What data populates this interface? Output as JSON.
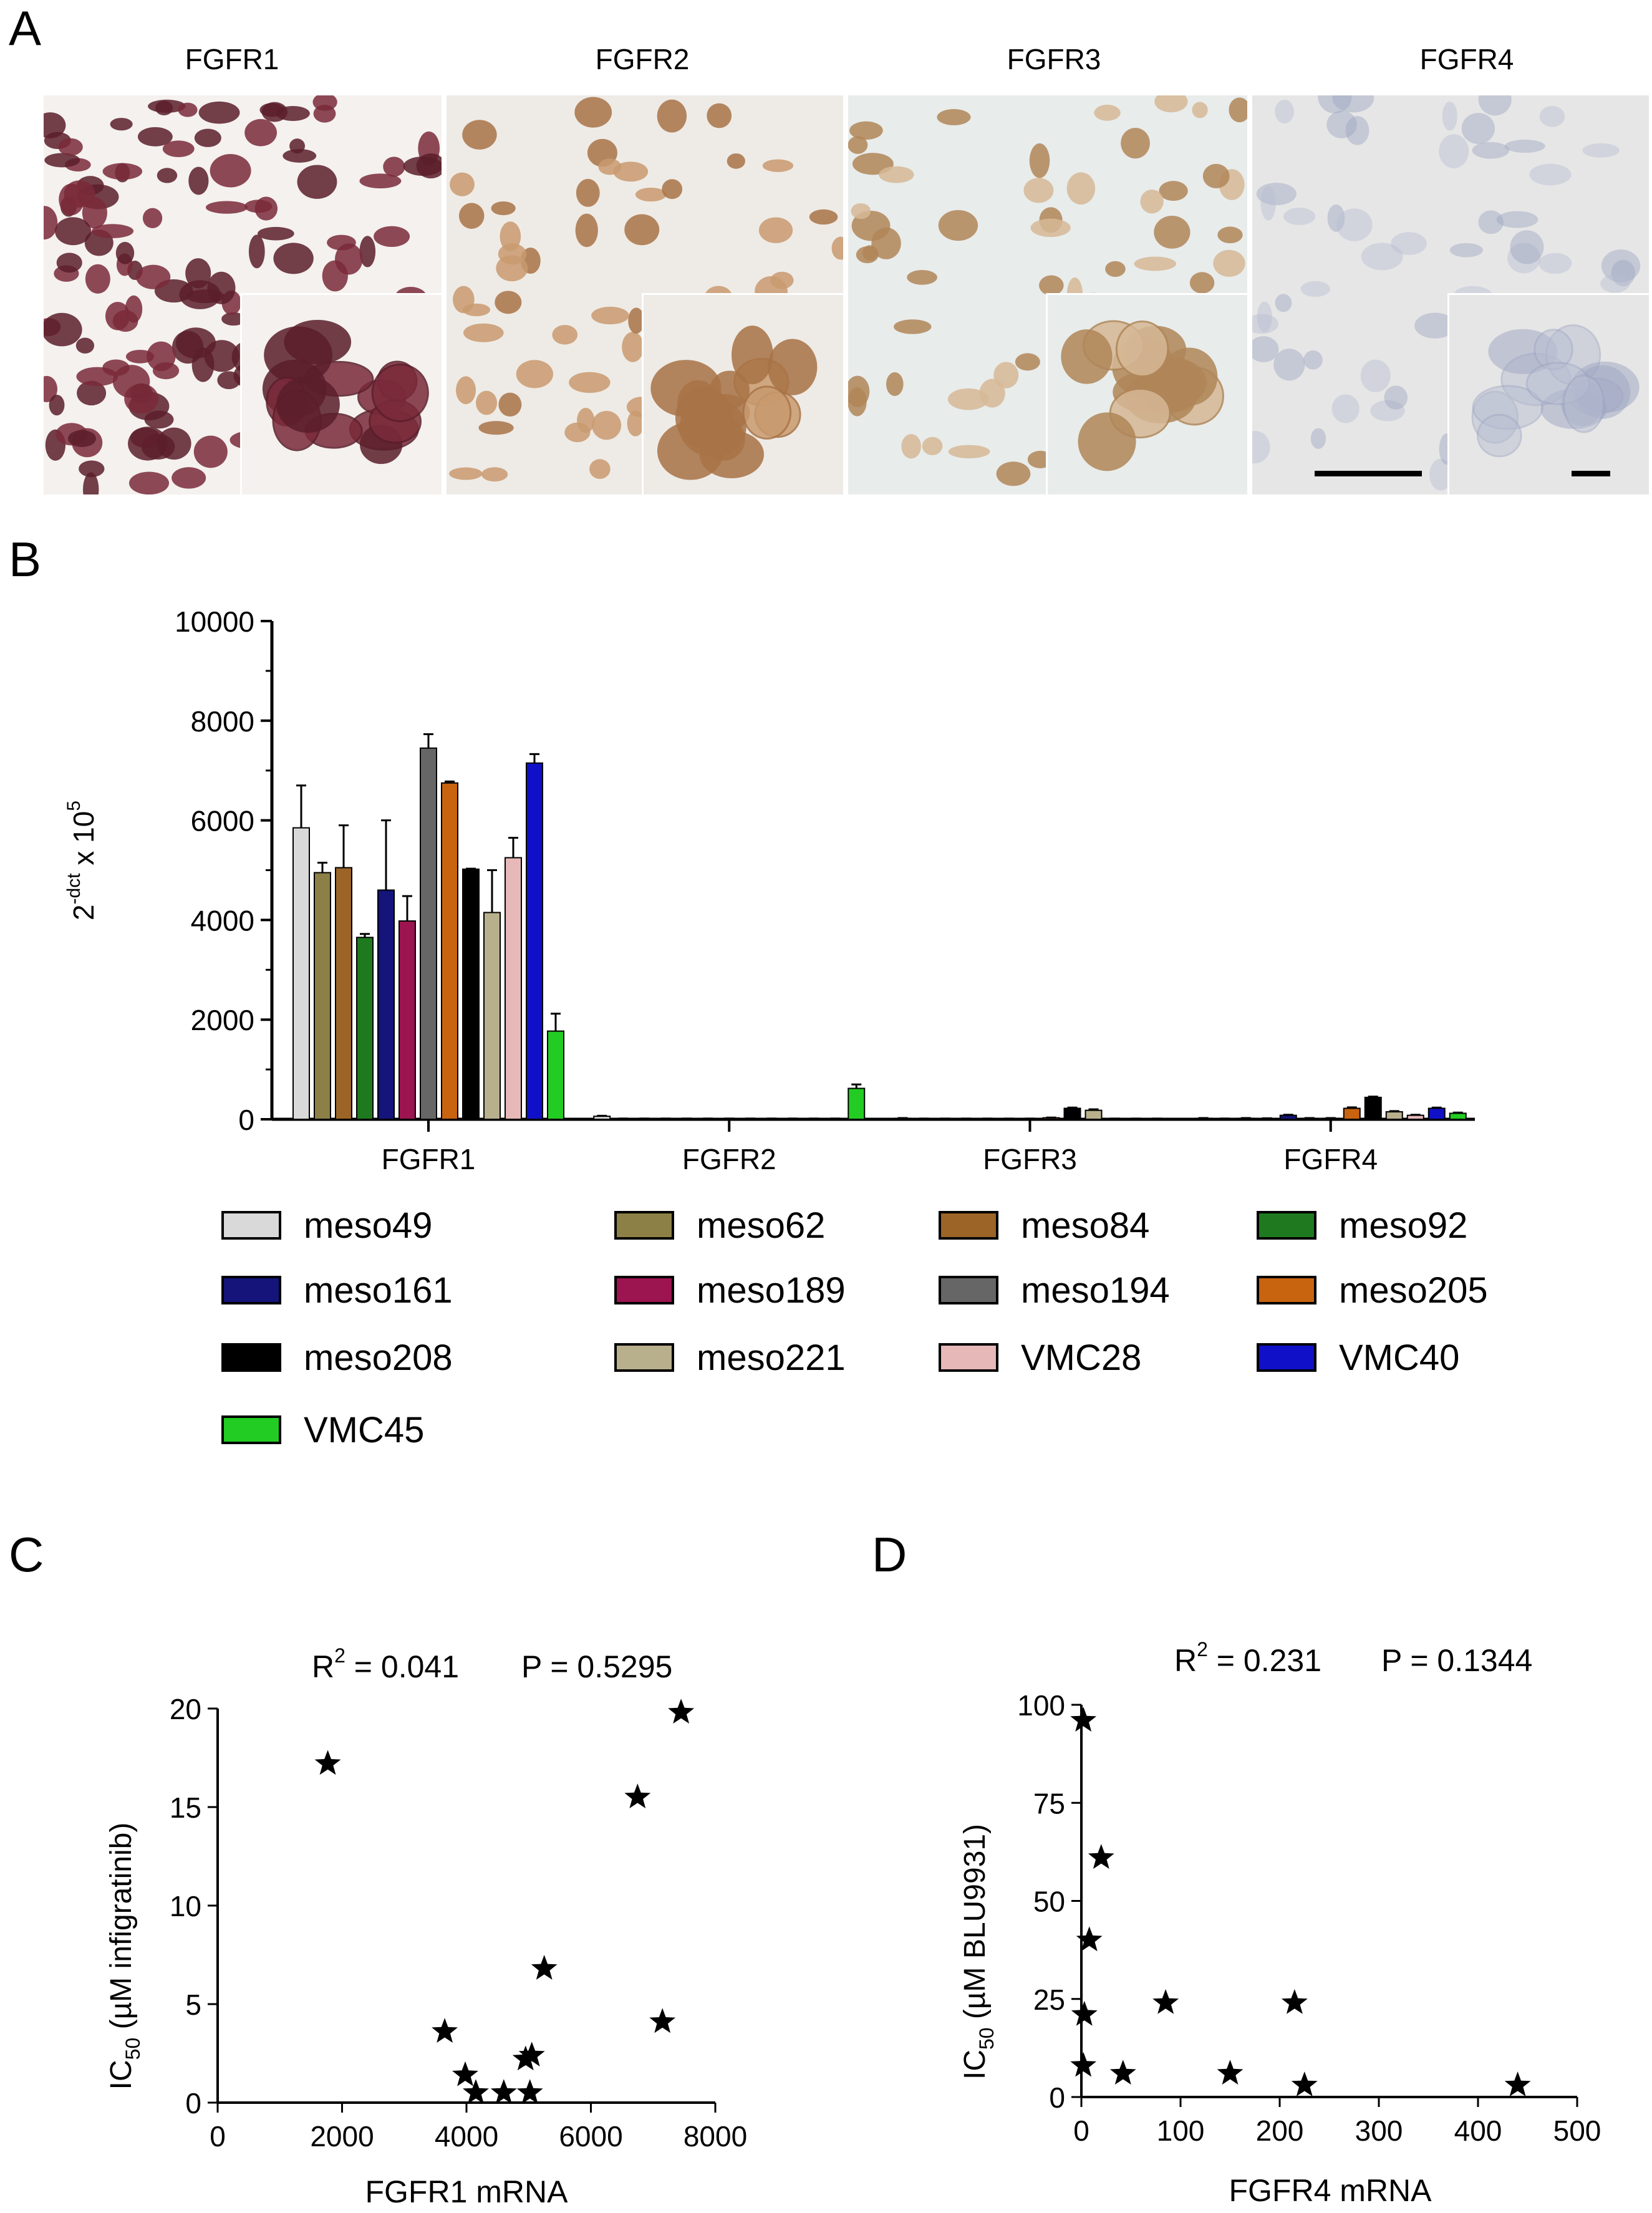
{
  "panels": {
    "a": "A",
    "b": "B",
    "c": "C",
    "d": "D"
  },
  "micrographs": [
    {
      "title": "FGFR1",
      "bg": "#f4f1ee",
      "cell": "#7a2a3a",
      "cell_alt": "#5a1e2a"
    },
    {
      "title": "FGFR2",
      "bg": "#eeebe6",
      "cell": "#c99a6e",
      "cell_alt": "#a87346"
    },
    {
      "title": "FGFR3",
      "bg": "#e8eceb",
      "cell": "#d6b896",
      "cell_alt": "#b08658"
    },
    {
      "title": "FGFR4",
      "bg": "#e6e6e6",
      "cell": "#b9bfd2",
      "cell_alt": "#9ea6c2"
    }
  ],
  "chart_data": [
    {
      "type": "bar",
      "ylabel": "2",
      "ylabel_sup": "-dct",
      "ylabel_mid": " x 10",
      "ylabel_sup2": "5",
      "xlabel": "",
      "ylim": [
        0,
        10000
      ],
      "yticks": [
        0,
        2000,
        4000,
        6000,
        8000,
        10000
      ],
      "categories": [
        "FGFR1",
        "FGFR2",
        "FGFR3",
        "FGFR4"
      ],
      "series": [
        {
          "name": "meso49",
          "color": "#d9d9d9",
          "values": [
            5850,
            60,
            20,
            20
          ],
          "errors": [
            850,
            10,
            5,
            5
          ]
        },
        {
          "name": "meso62",
          "color": "#8c8046",
          "values": [
            4950,
            10,
            10,
            10
          ],
          "errors": [
            200,
            5,
            5,
            5
          ]
        },
        {
          "name": "meso84",
          "color": "#9c6427",
          "values": [
            5050,
            10,
            10,
            20
          ],
          "errors": [
            850,
            5,
            5,
            5
          ]
        },
        {
          "name": "meso92",
          "color": "#1f7a1f",
          "values": [
            3650,
            10,
            10,
            15
          ],
          "errors": [
            70,
            5,
            5,
            5
          ]
        },
        {
          "name": "meso161",
          "color": "#14147a",
          "values": [
            4600,
            10,
            10,
            80
          ],
          "errors": [
            1400,
            5,
            5,
            10
          ]
        },
        {
          "name": "meso189",
          "color": "#9c1450",
          "values": [
            3980,
            10,
            10,
            20
          ],
          "errors": [
            500,
            5,
            5,
            5
          ]
        },
        {
          "name": "meso194",
          "color": "#666666",
          "values": [
            7450,
            10,
            10,
            20
          ],
          "errors": [
            280,
            5,
            5,
            5
          ]
        },
        {
          "name": "meso205",
          "color": "#c8630f",
          "values": [
            6750,
            10,
            30,
            220
          ],
          "errors": [
            30,
            5,
            5,
            20
          ]
        },
        {
          "name": "meso208",
          "color": "#000000",
          "values": [
            5020,
            10,
            220,
            440
          ],
          "errors": [
            10,
            5,
            15,
            15
          ]
        },
        {
          "name": "meso221",
          "color": "#b8b08c",
          "values": [
            4150,
            10,
            180,
            150
          ],
          "errors": [
            850,
            5,
            20,
            15
          ]
        },
        {
          "name": "VMC28",
          "color": "#e6b8b8",
          "values": [
            5250,
            10,
            10,
            80
          ],
          "errors": [
            400,
            5,
            5,
            10
          ]
        },
        {
          "name": "VMC40",
          "color": "#1010c8",
          "values": [
            7150,
            10,
            10,
            220
          ],
          "errors": [
            180,
            5,
            5,
            15
          ]
        },
        {
          "name": "VMC45",
          "color": "#22cc22",
          "values": [
            1770,
            620,
            10,
            120
          ],
          "errors": [
            350,
            80,
            5,
            15
          ]
        }
      ]
    },
    {
      "type": "scatter",
      "annotation_r": "R",
      "annotation_r_sup": "2",
      "annotation_r_val": " = 0.041",
      "annotation_p": "P = 0.5295",
      "xlabel": "FGFR1 mRNA",
      "ylabel_main": "IC",
      "ylabel_sub": "50",
      "ylabel_rest": " (µM infigratinib)",
      "xlim": [
        0,
        8000
      ],
      "ylim": [
        0,
        20
      ],
      "xticks": [
        0,
        2000,
        4000,
        6000,
        8000
      ],
      "yticks": [
        0,
        5,
        10,
        15,
        20
      ],
      "points": [
        {
          "x": 1770,
          "y": 17.2
        },
        {
          "x": 3650,
          "y": 3.6
        },
        {
          "x": 3980,
          "y": 1.4
        },
        {
          "x": 4150,
          "y": 0.5
        },
        {
          "x": 4600,
          "y": 0.5
        },
        {
          "x": 4950,
          "y": 2.2
        },
        {
          "x": 5050,
          "y": 2.4
        },
        {
          "x": 5020,
          "y": 0.5
        },
        {
          "x": 5250,
          "y": 6.8
        },
        {
          "x": 6750,
          "y": 15.5
        },
        {
          "x": 7150,
          "y": 4.1
        },
        {
          "x": 7450,
          "y": 19.8
        }
      ]
    },
    {
      "type": "scatter",
      "annotation_r": "R",
      "annotation_r_sup": "2",
      "annotation_r_val": " = 0.231",
      "annotation_p": "P = 0.1344",
      "xlabel": "FGFR4 mRNA",
      "ylabel_main": "IC",
      "ylabel_sub": "50",
      "ylabel_rest": " (µM BLU9931)",
      "xlim": [
        0,
        500
      ],
      "ylim": [
        0,
        100
      ],
      "xticks": [
        0,
        100,
        200,
        300,
        400,
        500
      ],
      "yticks": [
        0,
        25,
        50,
        75,
        100
      ],
      "points": [
        {
          "x": 2,
          "y": 96
        },
        {
          "x": 20,
          "y": 61
        },
        {
          "x": 8,
          "y": 40
        },
        {
          "x": 3,
          "y": 21
        },
        {
          "x": 2,
          "y": 8
        },
        {
          "x": 42,
          "y": 6
        },
        {
          "x": 85,
          "y": 24
        },
        {
          "x": 150,
          "y": 6
        },
        {
          "x": 215,
          "y": 24
        },
        {
          "x": 225,
          "y": 3
        },
        {
          "x": 440,
          "y": 3
        }
      ]
    }
  ]
}
